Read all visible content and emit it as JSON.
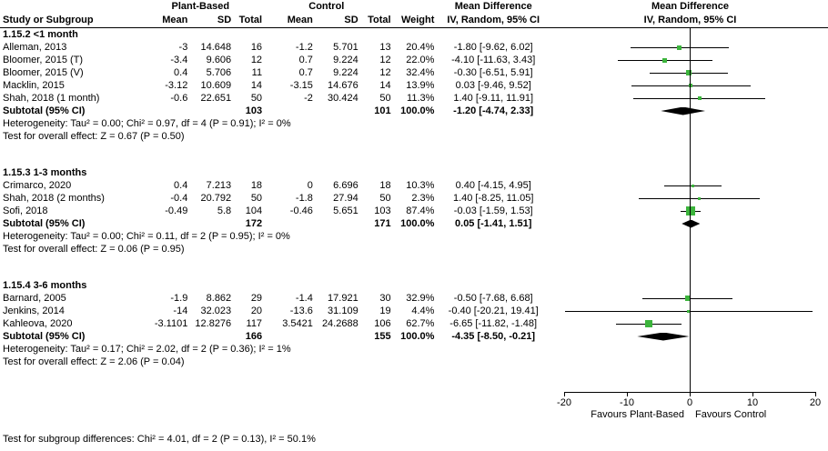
{
  "header": {
    "col_study": "Study or Subgroup",
    "group_plant": "Plant-Based",
    "group_control": "Control",
    "col_mean": "Mean",
    "col_sd": "SD",
    "col_total": "Total",
    "col_weight": "Weight",
    "md_title": "Mean Difference",
    "md_method": "IV, Random, 95% CI"
  },
  "chart_data": {
    "type": "forest",
    "effect_measure": "Mean Difference",
    "model": "IV, Random, 95% CI",
    "axis": {
      "min": -20,
      "max": 20,
      "ticks": [
        -20,
        -10,
        0,
        10,
        20
      ],
      "left_label": "Favours Plant-Based",
      "right_label": "Favours Control"
    },
    "colors": {
      "square": "#3cb43c",
      "diamond": "#000000",
      "ci_line": "#000000"
    },
    "subgroups": [
      {
        "label": "1.15.2 <1 month",
        "studies": [
          {
            "name": "Alleman, 2013",
            "mean1": "-3",
            "sd1": "14.648",
            "total1": "16",
            "mean2": "-1.2",
            "sd2": "5.701",
            "total2": "13",
            "weight": "20.4%",
            "weight_pct": 20.4,
            "ci_text": "-1.80 [-9.62, 6.02]",
            "est": -1.8,
            "lo": -9.62,
            "hi": 6.02
          },
          {
            "name": "Bloomer, 2015 (T)",
            "mean1": "-3.4",
            "sd1": "9.606",
            "total1": "12",
            "mean2": "0.7",
            "sd2": "9.224",
            "total2": "12",
            "weight": "22.0%",
            "weight_pct": 22.0,
            "ci_text": "-4.10 [-11.63, 3.43]",
            "est": -4.1,
            "lo": -11.63,
            "hi": 3.43
          },
          {
            "name": "Bloomer, 2015 (V)",
            "mean1": "0.4",
            "sd1": "5.706",
            "total1": "11",
            "mean2": "0.7",
            "sd2": "9.224",
            "total2": "12",
            "weight": "32.4%",
            "weight_pct": 32.4,
            "ci_text": "-0.30 [-6.51, 5.91]",
            "est": -0.3,
            "lo": -6.51,
            "hi": 5.91
          },
          {
            "name": "Macklin, 2015",
            "mean1": "-3.12",
            "sd1": "10.609",
            "total1": "14",
            "mean2": "-3.15",
            "sd2": "14.676",
            "total2": "14",
            "weight": "13.9%",
            "weight_pct": 13.9,
            "ci_text": "0.03 [-9.46, 9.52]",
            "est": 0.03,
            "lo": -9.46,
            "hi": 9.52
          },
          {
            "name": "Shah, 2018 (1 month)",
            "mean1": "-0.6",
            "sd1": "22.651",
            "total1": "50",
            "mean2": "-2",
            "sd2": "30.424",
            "total2": "50",
            "weight": "11.3%",
            "weight_pct": 11.3,
            "ci_text": "1.40 [-9.11, 11.91]",
            "est": 1.4,
            "lo": -9.11,
            "hi": 11.91
          }
        ],
        "subtotal": {
          "label": "Subtotal (95% CI)",
          "total1": "103",
          "total2": "101",
          "weight": "100.0%",
          "ci_text": "-1.20 [-4.74, 2.33]",
          "est": -1.2,
          "lo": -4.74,
          "hi": 2.33
        },
        "heterogeneity": "Heterogeneity: Tau² = 0.00; Chi² = 0.97, df = 4 (P = 0.91); I² = 0%",
        "overall_effect": "Test for overall effect: Z = 0.67 (P = 0.50)"
      },
      {
        "label": "1.15.3 1-3 months",
        "studies": [
          {
            "name": "Crimarco, 2020",
            "mean1": "0.4",
            "sd1": "7.213",
            "total1": "18",
            "mean2": "0",
            "sd2": "6.696",
            "total2": "18",
            "weight": "10.3%",
            "weight_pct": 10.3,
            "ci_text": "0.40 [-4.15, 4.95]",
            "est": 0.4,
            "lo": -4.15,
            "hi": 4.95
          },
          {
            "name": "Shah, 2018 (2 months)",
            "mean1": "-0.4",
            "sd1": "20.792",
            "total1": "50",
            "mean2": "-1.8",
            "sd2": "27.94",
            "total2": "50",
            "weight": "2.3%",
            "weight_pct": 2.3,
            "ci_text": "1.40 [-8.25, 11.05]",
            "est": 1.4,
            "lo": -8.25,
            "hi": 11.05
          },
          {
            "name": "Sofi, 2018",
            "mean1": "-0.49",
            "sd1": "5.8",
            "total1": "104",
            "mean2": "-0.46",
            "sd2": "5.651",
            "total2": "103",
            "weight": "87.4%",
            "weight_pct": 87.4,
            "ci_text": "-0.03 [-1.59, 1.53]",
            "est": -0.03,
            "lo": -1.59,
            "hi": 1.53
          }
        ],
        "subtotal": {
          "label": "Subtotal (95% CI)",
          "total1": "172",
          "total2": "171",
          "weight": "100.0%",
          "ci_text": "0.05 [-1.41, 1.51]",
          "est": 0.05,
          "lo": -1.41,
          "hi": 1.51
        },
        "heterogeneity": "Heterogeneity: Tau² = 0.00; Chi² = 0.11, df = 2 (P = 0.95); I² = 0%",
        "overall_effect": "Test for overall effect: Z = 0.06 (P = 0.95)"
      },
      {
        "label": "1.15.4 3-6 months",
        "studies": [
          {
            "name": "Barnard, 2005",
            "mean1": "-1.9",
            "sd1": "8.862",
            "total1": "29",
            "mean2": "-1.4",
            "sd2": "17.921",
            "total2": "30",
            "weight": "32.9%",
            "weight_pct": 32.9,
            "ci_text": "-0.50 [-7.68, 6.68]",
            "est": -0.5,
            "lo": -7.68,
            "hi": 6.68
          },
          {
            "name": "Jenkins, 2014",
            "mean1": "-14",
            "sd1": "32.023",
            "total1": "20",
            "mean2": "-13.6",
            "sd2": "31.109",
            "total2": "19",
            "weight": "4.4%",
            "weight_pct": 4.4,
            "ci_text": "-0.40 [-20.21, 19.41]",
            "est": -0.4,
            "lo": -20.21,
            "hi": 19.41
          },
          {
            "name": "Kahleova, 2020",
            "mean1": "-3.1101",
            "sd1": "12.8276",
            "total1": "117",
            "mean2": "3.5421",
            "sd2": "24.2688",
            "total2": "106",
            "weight": "62.7%",
            "weight_pct": 62.7,
            "ci_text": "-6.65 [-11.82, -1.48]",
            "est": -6.65,
            "lo": -11.82,
            "hi": -1.48
          }
        ],
        "subtotal": {
          "label": "Subtotal (95% CI)",
          "total1": "166",
          "total2": "155",
          "weight": "100.0%",
          "ci_text": "-4.35 [-8.50, -0.21]",
          "est": -4.35,
          "lo": -8.5,
          "hi": -0.21
        },
        "heterogeneity": "Heterogeneity: Tau² = 0.17; Chi² = 2.02, df = 2 (P = 0.36); I² = 1%",
        "overall_effect": "Test for overall effect: Z = 2.06 (P = 0.04)"
      }
    ],
    "footer": "Test for subgroup differences: Chi² = 4.01, df = 2 (P = 0.13), I² = 50.1%"
  }
}
